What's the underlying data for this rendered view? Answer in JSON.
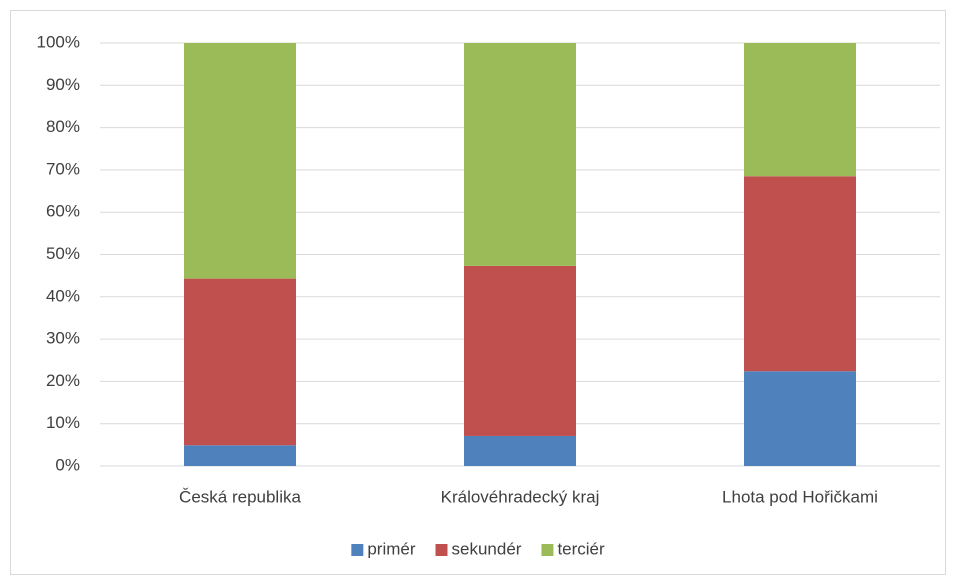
{
  "chart_data": {
    "type": "stacked_bar",
    "categories": [
      "Česká republika",
      "Královéhradecký kraj",
      "Lhota pod Hořičkami"
    ],
    "series": [
      {
        "name": "primér",
        "color": "#4f81bd",
        "values": [
          4.9,
          7.1,
          22.4
        ]
      },
      {
        "name": "sekundér",
        "color": "#c0504d",
        "values": [
          39.4,
          40.2,
          46.1
        ]
      },
      {
        "name": "terciér",
        "color": "#9bbb59",
        "values": [
          55.7,
          52.7,
          31.5
        ]
      }
    ],
    "ylim": [
      0,
      100
    ],
    "yticks": [
      {
        "value": 0,
        "label": "0%"
      },
      {
        "value": 10,
        "label": "10%"
      },
      {
        "value": 20,
        "label": "20%"
      },
      {
        "value": 30,
        "label": "30%"
      },
      {
        "value": 40,
        "label": "40%"
      },
      {
        "value": 50,
        "label": "50%"
      },
      {
        "value": 60,
        "label": "60%"
      },
      {
        "value": 70,
        "label": "70%"
      },
      {
        "value": 80,
        "label": "80%"
      },
      {
        "value": 90,
        "label": "90%"
      },
      {
        "value": 100,
        "label": "100%"
      }
    ],
    "grid": true,
    "legend": "bottom"
  }
}
